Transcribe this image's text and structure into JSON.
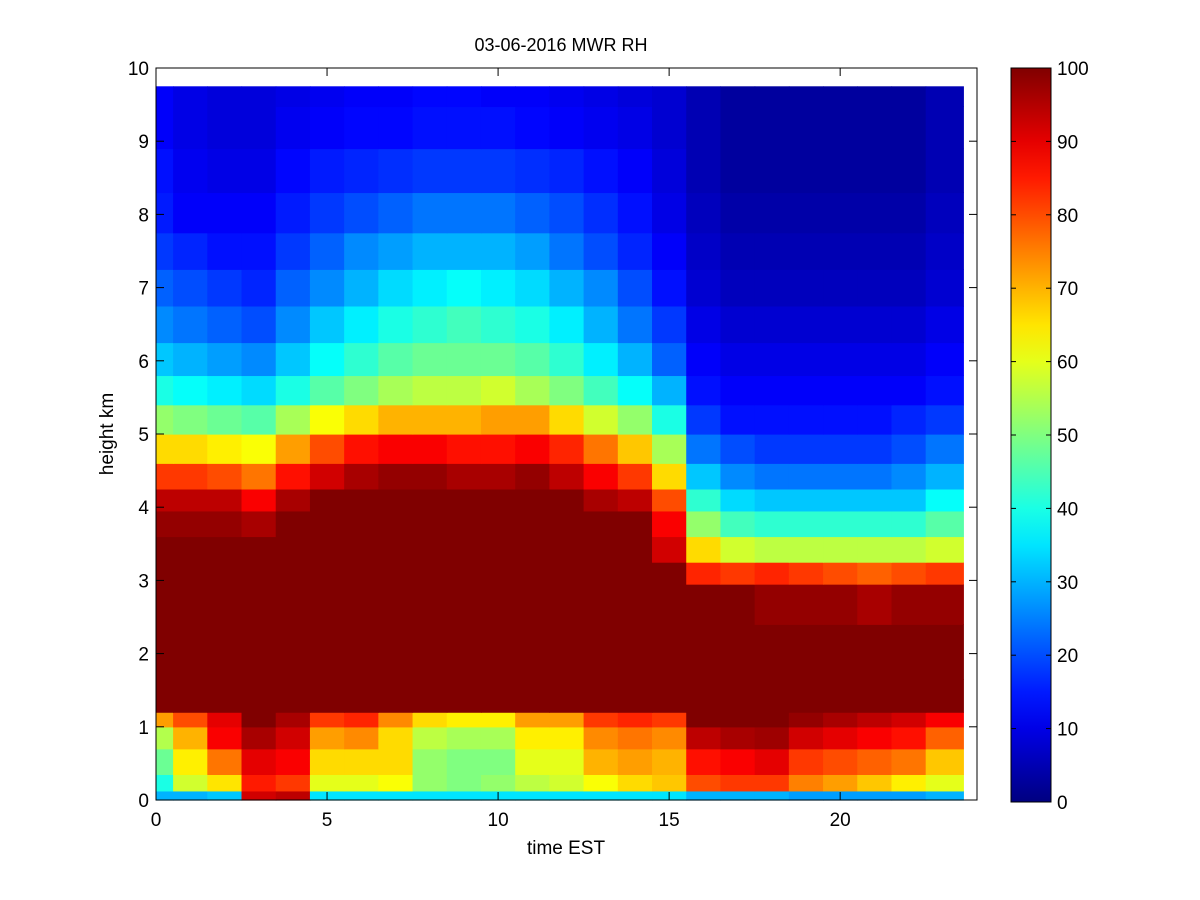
{
  "chart_data": {
    "type": "heatmap",
    "title": "03-06-2016 MWR RH",
    "xlabel": "time EST",
    "ylabel": "height km",
    "xlim": [
      0,
      23.6
    ],
    "ylim": [
      0,
      10
    ],
    "x_ticks": [
      0,
      5,
      10,
      15,
      20
    ],
    "y_ticks": [
      0,
      1,
      2,
      3,
      4,
      5,
      6,
      7,
      8,
      9,
      10
    ],
    "colormap": "jet",
    "clim": [
      0,
      100
    ],
    "colorbar_ticks": [
      0,
      10,
      20,
      30,
      40,
      50,
      60,
      70,
      80,
      90,
      100
    ],
    "grid": false,
    "time_hours": [
      0,
      1,
      2,
      3,
      4,
      5,
      6,
      7,
      8,
      9,
      10,
      11,
      12,
      13,
      14,
      15,
      16,
      17,
      18,
      19,
      20,
      21,
      22,
      23
    ],
    "heights_km": [
      0.05,
      0.2,
      0.5,
      0.9,
      1.1,
      1.3,
      2.0,
      2.8,
      3.1,
      3.4,
      3.8,
      4.1,
      4.4,
      4.8,
      5.2,
      5.6,
      6.0,
      6.5,
      7.0,
      7.5,
      8.0,
      8.6,
      9.2,
      9.75
    ],
    "rh_percent": [
      [
        30,
        30,
        32,
        92,
        94,
        35,
        35,
        35,
        35,
        35,
        35,
        35,
        35,
        35,
        35,
        35,
        30,
        30,
        30,
        28,
        28,
        28,
        28,
        30
      ],
      [
        40,
        58,
        65,
        85,
        82,
        60,
        60,
        62,
        52,
        50,
        52,
        56,
        58,
        62,
        66,
        68,
        80,
        82,
        82,
        75,
        72,
        68,
        64,
        60
      ],
      [
        48,
        64,
        76,
        90,
        88,
        66,
        66,
        66,
        52,
        50,
        50,
        60,
        60,
        70,
        72,
        70,
        86,
        88,
        90,
        82,
        80,
        78,
        76,
        68
      ],
      [
        55,
        70,
        88,
        96,
        92,
        72,
        74,
        66,
        56,
        54,
        54,
        64,
        64,
        74,
        76,
        74,
        94,
        96,
        97,
        92,
        90,
        88,
        86,
        78
      ],
      [
        72,
        80,
        90,
        100,
        96,
        82,
        84,
        74,
        66,
        64,
        64,
        72,
        72,
        82,
        84,
        82,
        100,
        100,
        100,
        98,
        96,
        94,
        92,
        88
      ],
      [
        100,
        100,
        100,
        100,
        100,
        100,
        100,
        100,
        100,
        100,
        100,
        100,
        100,
        100,
        100,
        100,
        100,
        100,
        100,
        100,
        100,
        100,
        100,
        100
      ],
      [
        100,
        100,
        100,
        100,
        100,
        100,
        100,
        100,
        100,
        100,
        100,
        100,
        100,
        100,
        100,
        100,
        100,
        100,
        100,
        100,
        100,
        100,
        100,
        100
      ],
      [
        100,
        100,
        100,
        100,
        100,
        100,
        100,
        100,
        100,
        100,
        100,
        100,
        100,
        100,
        100,
        100,
        100,
        100,
        98,
        98,
        98,
        96,
        98,
        98
      ],
      [
        100,
        100,
        100,
        100,
        100,
        100,
        100,
        100,
        100,
        100,
        100,
        100,
        100,
        100,
        100,
        100,
        84,
        82,
        84,
        82,
        80,
        78,
        80,
        82
      ],
      [
        100,
        100,
        100,
        100,
        100,
        100,
        100,
        100,
        100,
        100,
        100,
        100,
        100,
        100,
        100,
        92,
        66,
        58,
        56,
        56,
        56,
        56,
        56,
        58
      ],
      [
        98,
        98,
        98,
        96,
        100,
        100,
        100,
        100,
        100,
        100,
        100,
        100,
        100,
        100,
        100,
        88,
        52,
        44,
        42,
        42,
        42,
        42,
        42,
        46
      ],
      [
        94,
        94,
        94,
        88,
        96,
        100,
        100,
        100,
        100,
        100,
        100,
        100,
        100,
        96,
        94,
        80,
        42,
        34,
        32,
        32,
        32,
        32,
        32,
        38
      ],
      [
        82,
        82,
        80,
        76,
        86,
        92,
        96,
        98,
        98,
        96,
        96,
        98,
        94,
        88,
        82,
        66,
        32,
        26,
        24,
        24,
        24,
        24,
        26,
        30
      ],
      [
        66,
        66,
        64,
        62,
        72,
        80,
        86,
        88,
        88,
        86,
        86,
        88,
        84,
        76,
        68,
        54,
        24,
        20,
        18,
        18,
        18,
        18,
        20,
        24
      ],
      [
        52,
        50,
        48,
        46,
        54,
        62,
        66,
        70,
        70,
        70,
        72,
        72,
        66,
        58,
        52,
        40,
        18,
        14,
        14,
        14,
        14,
        14,
        16,
        18
      ],
      [
        40,
        38,
        36,
        34,
        40,
        46,
        50,
        54,
        56,
        56,
        58,
        54,
        50,
        44,
        38,
        30,
        14,
        12,
        12,
        12,
        12,
        12,
        12,
        14
      ],
      [
        32,
        30,
        28,
        26,
        32,
        38,
        42,
        46,
        48,
        48,
        48,
        46,
        42,
        36,
        30,
        22,
        12,
        10,
        10,
        10,
        10,
        10,
        10,
        12
      ],
      [
        26,
        24,
        22,
        20,
        26,
        32,
        36,
        40,
        42,
        44,
        42,
        40,
        36,
        30,
        24,
        18,
        10,
        8,
        8,
        8,
        8,
        8,
        8,
        10
      ],
      [
        22,
        20,
        18,
        16,
        22,
        26,
        30,
        34,
        36,
        38,
        36,
        34,
        30,
        26,
        20,
        14,
        8,
        6,
        6,
        6,
        6,
        6,
        6,
        8
      ],
      [
        18,
        16,
        14,
        14,
        18,
        22,
        26,
        28,
        30,
        30,
        30,
        28,
        24,
        20,
        16,
        12,
        7,
        5,
        5,
        5,
        5,
        5,
        5,
        7
      ],
      [
        15,
        12,
        12,
        12,
        15,
        18,
        20,
        22,
        24,
        24,
        24,
        22,
        20,
        17,
        14,
        10,
        6,
        4,
        4,
        4,
        4,
        4,
        4,
        6
      ],
      [
        14,
        11,
        10,
        10,
        13,
        15,
        16,
        17,
        18,
        18,
        18,
        17,
        16,
        14,
        12,
        9,
        5,
        3,
        3,
        3,
        3,
        3,
        3,
        5
      ],
      [
        12,
        10,
        9,
        9,
        11,
        12,
        13,
        13,
        14,
        14,
        14,
        13,
        12,
        11,
        10,
        8,
        5,
        3,
        3,
        3,
        3,
        3,
        3,
        5
      ],
      [
        12,
        10,
        9,
        9,
        10,
        11,
        12,
        12,
        13,
        13,
        12,
        12,
        11,
        10,
        9,
        8,
        5,
        3,
        3,
        3,
        3,
        3,
        3,
        5
      ]
    ]
  }
}
